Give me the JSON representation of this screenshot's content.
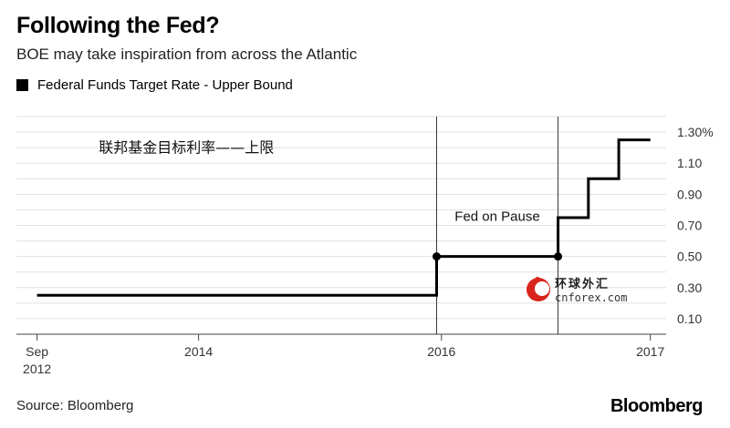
{
  "chart_data": {
    "type": "line",
    "title": "Following the Fed?",
    "subtitle": "BOE may take inspiration from across the Atlantic",
    "legend": [
      "Federal Funds Target Rate - Upper Bound"
    ],
    "series": [
      {
        "name": "Federal Funds Target Rate - Upper Bound",
        "step": true,
        "points": [
          {
            "x": 2012.67,
            "y": 0.25
          },
          {
            "x": 2015.96,
            "y": 0.25
          },
          {
            "x": 2015.96,
            "y": 0.5
          },
          {
            "x": 2016.96,
            "y": 0.5
          },
          {
            "x": 2016.96,
            "y": 0.75
          },
          {
            "x": 2017.21,
            "y": 0.75
          },
          {
            "x": 2017.21,
            "y": 1.0
          },
          {
            "x": 2017.46,
            "y": 1.0
          },
          {
            "x": 2017.46,
            "y": 1.25
          },
          {
            "x": 2017.72,
            "y": 1.25
          }
        ],
        "markers": [
          {
            "x": 2015.96,
            "y": 0.5
          },
          {
            "x": 2016.96,
            "y": 0.5
          }
        ]
      }
    ],
    "x_ticks": [
      {
        "x": 2012.67,
        "label": "Sep",
        "label2": "2012"
      },
      {
        "x": 2014.0,
        "label": "2014",
        "label2": ""
      },
      {
        "x": 2016.0,
        "label": "2016",
        "label2": ""
      },
      {
        "x": 2017.72,
        "label": "2017",
        "label2": ""
      }
    ],
    "y_ticks": [
      {
        "y": 1.3,
        "label": "1.30%"
      },
      {
        "y": 1.1,
        "label": "1.10"
      },
      {
        "y": 0.9,
        "label": "0.90"
      },
      {
        "y": 0.7,
        "label": "0.70"
      },
      {
        "y": 0.5,
        "label": "0.50"
      },
      {
        "y": 0.3,
        "label": "0.30"
      },
      {
        "y": 0.1,
        "label": "0.10"
      }
    ],
    "gridlines": [
      1.4,
      1.3,
      1.2,
      1.1,
      1.0,
      0.9,
      0.8,
      0.7,
      0.6,
      0.5,
      0.4,
      0.3,
      0.2,
      0.1,
      0.0
    ],
    "xlim": [
      2012.5,
      2017.85
    ],
    "ylim": [
      0.0,
      1.4
    ],
    "vertical_lines": [
      2015.96,
      2016.96
    ],
    "annotations": [
      {
        "text": "Fed on Pause",
        "x": 2016.46,
        "y": 0.73
      },
      {
        "text": "联邦基金目标利率——上限",
        "x": 2013.9,
        "y": 1.17
      }
    ],
    "watermark": {
      "cn": "环球外汇",
      "en": "cnforex.com"
    },
    "line_color": "#000000",
    "grid_color": "#e0e0e0",
    "marker_color": "#000000"
  },
  "footer": {
    "source": "Source: Bloomberg",
    "brand": "Bloomberg"
  }
}
